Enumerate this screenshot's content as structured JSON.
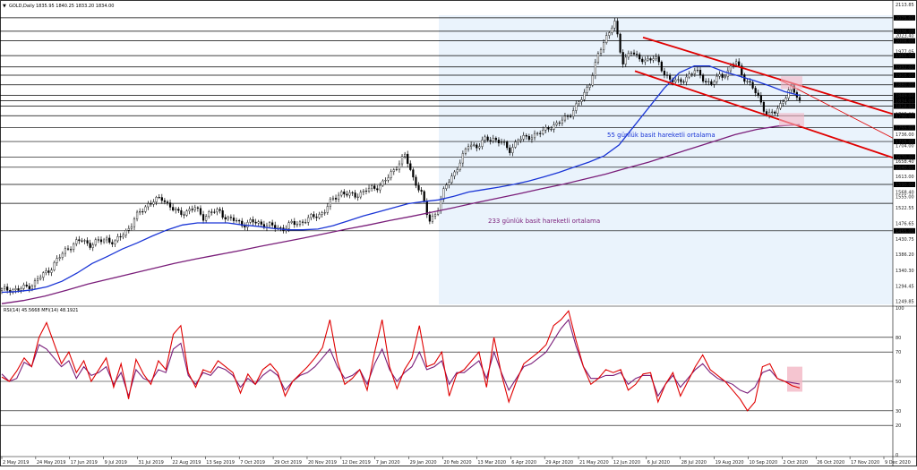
{
  "header": {
    "symbol_label": "GOLD,Daily",
    "ohlc_label": "1835.95 1840.25 1833.20 1834.00"
  },
  "colors": {
    "background": "#ffffff",
    "highlight_zone": "#eaf3fc",
    "candles": "#000000",
    "sma55": "#1a35d6",
    "sma233": "#7a1e7a",
    "channel": "#e00000",
    "rsi": "#e00000",
    "mfi": "#7a1e7a",
    "pink_zone": "#f3b6c4",
    "grid": "#000000"
  },
  "annotations": {
    "sma55_label": "55 günlük basit hareketli ortalama",
    "sma233_label": "233 günlük basit hareketli ortalama"
  },
  "oscillator": {
    "header_label": "RSI(14) 45.5668   MFI(14) 48.1921"
  },
  "chart_data": [
    {
      "type": "line",
      "title": "GOLD,Daily",
      "xlabel": "",
      "ylabel": "",
      "grid": false,
      "ylim": [
        1240.85,
        2113.85
      ],
      "x_ticks": [
        "2 May 2019",
        "24 May 2019",
        "17 Jun 2019",
        "9 Jul 2019",
        "31 Jul 2019",
        "22 Aug 2019",
        "13 Sep 2019",
        "7 Oct 2019",
        "29 Oct 2019",
        "20 Nov 2019",
        "12 Dec 2019",
        "7 Jan 2020",
        "29 Jan 2020",
        "20 Feb 2020",
        "13 Mar 2020",
        "6 Apr 2020",
        "29 Apr 2020",
        "21 May 2020",
        "12 Jun 2020",
        "6 Jul 2020",
        "28 Jul 2020",
        "19 Aug 2020",
        "10 Sep 2020",
        "2 Oct 2020",
        "26 Oct 2020",
        "17 Nov 2020",
        "9 Dec 2020"
      ],
      "y_ticks": [
        "2113.85",
        "2075.00",
        "2036.00",
        "2023.40",
        "2008.00",
        "1977.05",
        "1965.00",
        "1932.00",
        "1908.00",
        "1880.00",
        "1849.00",
        "1834.00",
        "1818.00",
        "1795.00",
        "1790.00",
        "1755.00",
        "1736.00",
        "1715.00",
        "1704.00",
        "1670.00",
        "1658.40",
        "1640.00",
        "1613.00",
        "1590.00",
        "1568.40",
        "1555.00",
        "1522.55",
        "1476.65",
        "1455.00",
        "1430.75",
        "1386.20",
        "1340.30",
        "1294.45",
        "1249.85"
      ],
      "boxed_levels": [
        "2075.00",
        "2036.00",
        "2008.00",
        "1965.00",
        "1932.00",
        "1908.00",
        "1880.00",
        "1849.00",
        "1834.00",
        "1818.00",
        "1790.00",
        "1755.00",
        "1715.00",
        "1670.00",
        "1640.00",
        "1590.00",
        "1535.00",
        "1455.00"
      ],
      "series": [
        {
          "name": "GOLD,Daily",
          "values": [
            1281,
            1286,
            1282,
            1292,
            1302,
            1325,
            1345,
            1372,
            1402,
            1418,
            1428,
            1415,
            1423,
            1433,
            1418,
            1446,
            1470,
            1506,
            1532,
            1541,
            1552,
            1521,
            1505,
            1513,
            1520,
            1496,
            1508,
            1513,
            1490,
            1484,
            1474,
            1480,
            1478,
            1470,
            1465,
            1462,
            1475,
            1480,
            1488,
            1500,
            1510,
            1545,
            1568,
            1558,
            1560,
            1570,
            1579,
            1589,
            1610,
            1645,
            1675,
            1610,
            1571,
            1480,
            1515,
            1580,
            1620,
            1660,
            1710,
            1700,
            1720,
            1725,
            1710,
            1690,
            1720,
            1725,
            1735,
            1740,
            1760,
            1765,
            1785,
            1810,
            1840,
            1890,
            1965,
            2020,
            2068,
            1940,
            1985,
            1950,
            1955,
            1960,
            1920,
            1895,
            1885,
            1905,
            1920,
            1900,
            1880,
            1905,
            1915,
            1950,
            1905,
            1875,
            1840,
            1790,
            1800,
            1840,
            1870,
            1834
          ]
        },
        {
          "name": "55 günlük basit hareketli ortalama",
          "values": [
            1276,
            1278,
            1283,
            1292,
            1308,
            1332,
            1360,
            1380,
            1402,
            1420,
            1440,
            1458,
            1472,
            1478,
            1478,
            1478,
            1472,
            1468,
            1462,
            1458,
            1458,
            1460,
            1470,
            1484,
            1498,
            1510,
            1522,
            1534,
            1540,
            1545,
            1555,
            1568,
            1575,
            1582,
            1590,
            1600,
            1612,
            1625,
            1640,
            1655,
            1673,
            1705,
            1760,
            1815,
            1870,
            1915,
            1935,
            1935,
            1918,
            1905,
            1892,
            1877,
            1860,
            1849
          ]
        },
        {
          "name": "233 günlük basit hareketli ortalama",
          "values": [
            1243,
            1252,
            1265,
            1282,
            1300,
            1315,
            1330,
            1345,
            1360,
            1373,
            1385,
            1397,
            1410,
            1422,
            1434,
            1447,
            1460,
            1472,
            1485,
            1497,
            1510,
            1523,
            1537,
            1550,
            1563,
            1577,
            1590,
            1605,
            1620,
            1638,
            1655,
            1675,
            1695,
            1715,
            1735,
            1750,
            1760,
            1764
          ]
        }
      ],
      "annotations": [
        "55 günlük basit hareketli ortalama",
        "233 günlük basit hareketli ortalama"
      ]
    },
    {
      "type": "line",
      "title": "RSI(14) 45.5668   MFI(14) 48.1921",
      "ylim": [
        0,
        100
      ],
      "y_ticks": [
        "100",
        "80",
        "70",
        "50",
        "30",
        "20",
        "0"
      ],
      "series": [
        {
          "name": "RSI(14)",
          "values": [
            53,
            50,
            57,
            66,
            60,
            80,
            90,
            76,
            62,
            70,
            56,
            64,
            50,
            58,
            66,
            46,
            62,
            38,
            65,
            55,
            48,
            64,
            58,
            82,
            88,
            56,
            46,
            58,
            56,
            64,
            60,
            56,
            42,
            55,
            48,
            58,
            62,
            56,
            40,
            50,
            55,
            60,
            66,
            73,
            92,
            64,
            48,
            52,
            58,
            44,
            70,
            92,
            60,
            45,
            58,
            66,
            88,
            60,
            62,
            70,
            40,
            55,
            58,
            64,
            70,
            46,
            80,
            55,
            36,
            50,
            62,
            66,
            70,
            75,
            88,
            92,
            98,
            78,
            60,
            48,
            52,
            58,
            56,
            58,
            44,
            48,
            55,
            56,
            36,
            48,
            56,
            40,
            50,
            60,
            68,
            58,
            54,
            50,
            44,
            38,
            30,
            36,
            60,
            62,
            52,
            50,
            47,
            45.57
          ]
        },
        {
          "name": "MFI(14)",
          "values": [
            55,
            50,
            52,
            63,
            60,
            75,
            72,
            66,
            60,
            64,
            52,
            60,
            54,
            56,
            60,
            48,
            56,
            40,
            58,
            52,
            50,
            58,
            56,
            72,
            76,
            54,
            48,
            56,
            54,
            60,
            58,
            54,
            46,
            52,
            48,
            54,
            58,
            54,
            44,
            50,
            54,
            56,
            60,
            66,
            72,
            60,
            52,
            54,
            58,
            48,
            62,
            72,
            58,
            50,
            56,
            60,
            70,
            58,
            60,
            64,
            48,
            56,
            56,
            60,
            64,
            52,
            70,
            56,
            44,
            52,
            60,
            62,
            66,
            70,
            78,
            86,
            92,
            74,
            60,
            52,
            52,
            54,
            54,
            56,
            48,
            52,
            54,
            54,
            40,
            48,
            54,
            46,
            52,
            58,
            62,
            56,
            52,
            50,
            48,
            44,
            42,
            46,
            56,
            58,
            52,
            50,
            49,
            48.19
          ]
        }
      ]
    }
  ]
}
